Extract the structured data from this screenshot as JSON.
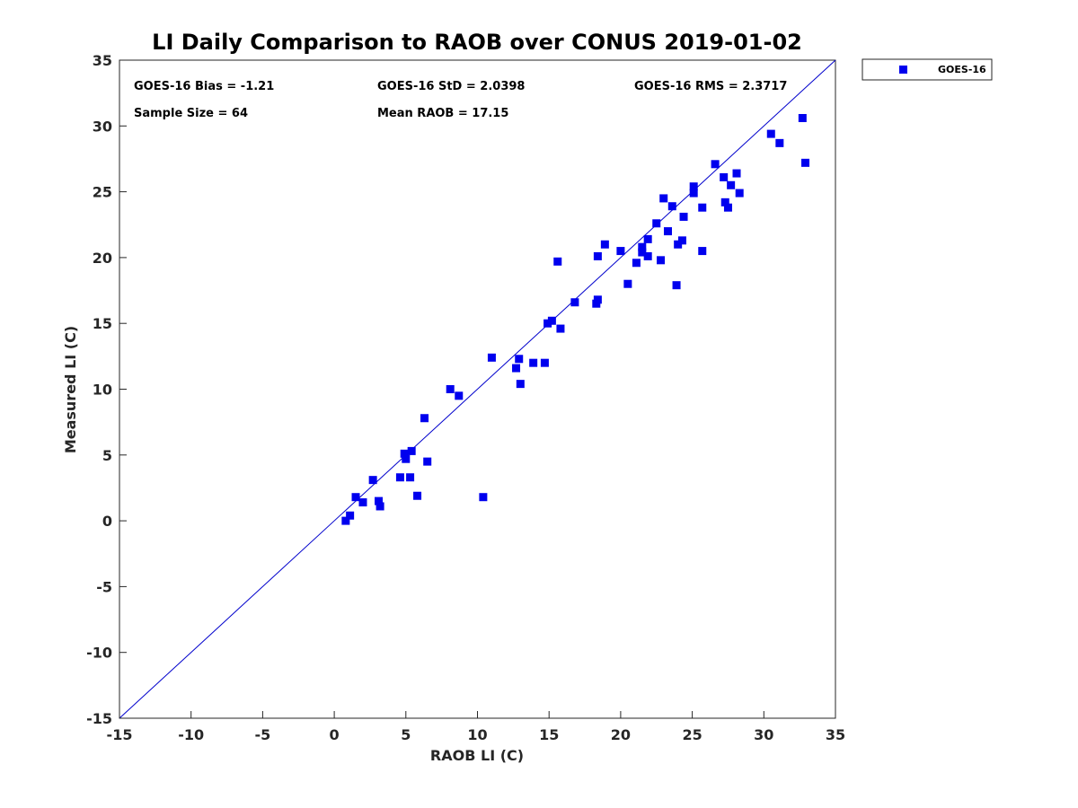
{
  "chart_data": {
    "type": "scatter",
    "title": "LI Daily Comparison to RAOB over CONUS 2019-01-02",
    "xlabel": "RAOB LI (C)",
    "ylabel": "Measured LI (C)",
    "xlim": [
      -15,
      35
    ],
    "ylim": [
      -15,
      35
    ],
    "xticks": [
      "-15",
      "-10",
      "-5",
      "0",
      "5",
      "10",
      "15",
      "20",
      "25",
      "30",
      "35"
    ],
    "yticks": [
      "-15",
      "-10",
      "-5",
      "0",
      "5",
      "10",
      "15",
      "20",
      "25",
      "30",
      "35"
    ],
    "grid": false,
    "legend_position": "outside-top-right",
    "reference_line": {
      "x": [
        -15,
        35
      ],
      "y": [
        -15,
        35
      ],
      "color": "#0000cc"
    },
    "stats": {
      "bias": "GOES-16 Bias = -1.21",
      "std": "GOES-16 StD = 2.0398",
      "rms": "GOES-16 RMS = 2.3717",
      "sample": "Sample Size = 64",
      "mean": "Mean RAOB = 17.15"
    },
    "series": [
      {
        "name": "GOES-16",
        "color": "#0000ee",
        "marker": "square",
        "x": [
          0.8,
          1.1,
          1.5,
          2.0,
          2.7,
          3.1,
          3.2,
          4.6,
          4.9,
          5.0,
          5.3,
          5.4,
          5.8,
          6.3,
          6.5,
          8.1,
          8.7,
          10.4,
          11.0,
          12.7,
          12.9,
          13.0,
          13.9,
          14.7,
          14.9,
          15.2,
          15.6,
          15.8,
          16.8,
          18.3,
          18.4,
          18.4,
          18.9,
          20.0,
          20.5,
          21.1,
          21.5,
          21.5,
          21.9,
          21.9,
          22.5,
          22.8,
          23.0,
          23.3,
          23.6,
          23.9,
          24.0,
          24.3,
          24.4,
          25.1,
          25.1,
          25.7,
          25.7,
          26.6,
          27.2,
          27.3,
          27.5,
          27.7,
          28.1,
          28.3,
          30.5,
          31.1,
          32.7,
          32.9
        ],
        "y": [
          0.0,
          0.4,
          1.8,
          1.4,
          3.1,
          1.5,
          1.1,
          3.3,
          5.1,
          4.7,
          3.3,
          5.3,
          1.9,
          7.8,
          4.5,
          10.0,
          9.5,
          1.8,
          12.4,
          11.6,
          12.3,
          10.4,
          12.0,
          12.0,
          15.0,
          15.2,
          19.7,
          14.6,
          16.6,
          16.5,
          16.8,
          20.1,
          21.0,
          20.5,
          18.0,
          19.6,
          20.8,
          20.4,
          21.4,
          20.1,
          22.6,
          19.8,
          24.5,
          22.0,
          23.9,
          17.9,
          21.0,
          21.3,
          23.1,
          24.9,
          25.4,
          23.8,
          20.5,
          27.1,
          26.1,
          24.2,
          23.8,
          25.5,
          26.4,
          24.9,
          29.4,
          28.7,
          30.6,
          27.2
        ]
      }
    ]
  }
}
